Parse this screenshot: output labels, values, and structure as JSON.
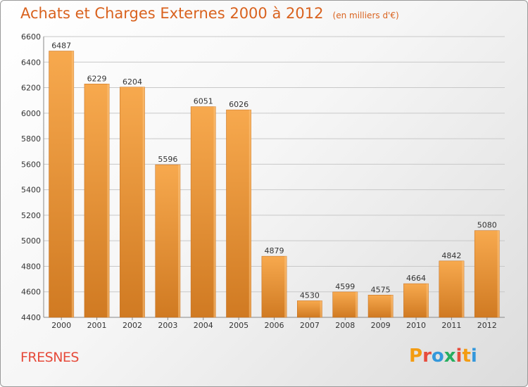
{
  "header": {
    "title": "Achats et Charges Externes 2000 à 2012",
    "unit": "(en milliers d'€)"
  },
  "footer": {
    "commune": "FRESNES",
    "logo": "Proxiti"
  },
  "colors": {
    "title": "#d9621e",
    "commune": "#e64b3b",
    "bar_light": "#f7a94e",
    "bar_dark": "#d07a22",
    "grid": "#c8c8c8",
    "logo_letters": [
      "#f39c12",
      "#e74c3c",
      "#3498db",
      "#27ae60",
      "#e74c3c",
      "#f39c12",
      "#3498db"
    ]
  },
  "chart_data": {
    "type": "bar",
    "title": "Achats et Charges Externes 2000 à 2012",
    "subtitle": "(en milliers d'€)",
    "categories": [
      "2000",
      "2001",
      "2002",
      "2003",
      "2004",
      "2005",
      "2006",
      "2007",
      "2008",
      "2009",
      "2010",
      "2011",
      "2012"
    ],
    "values": [
      6487,
      6229,
      6204,
      5596,
      6051,
      6026,
      4879,
      4530,
      4599,
      4575,
      4664,
      4842,
      5080
    ],
    "ylim": [
      4400,
      6600
    ],
    "yticks": [
      4400,
      4600,
      4800,
      5000,
      5200,
      5400,
      5600,
      5800,
      6000,
      6200,
      6400,
      6600
    ],
    "grid": true,
    "legend": "none"
  }
}
